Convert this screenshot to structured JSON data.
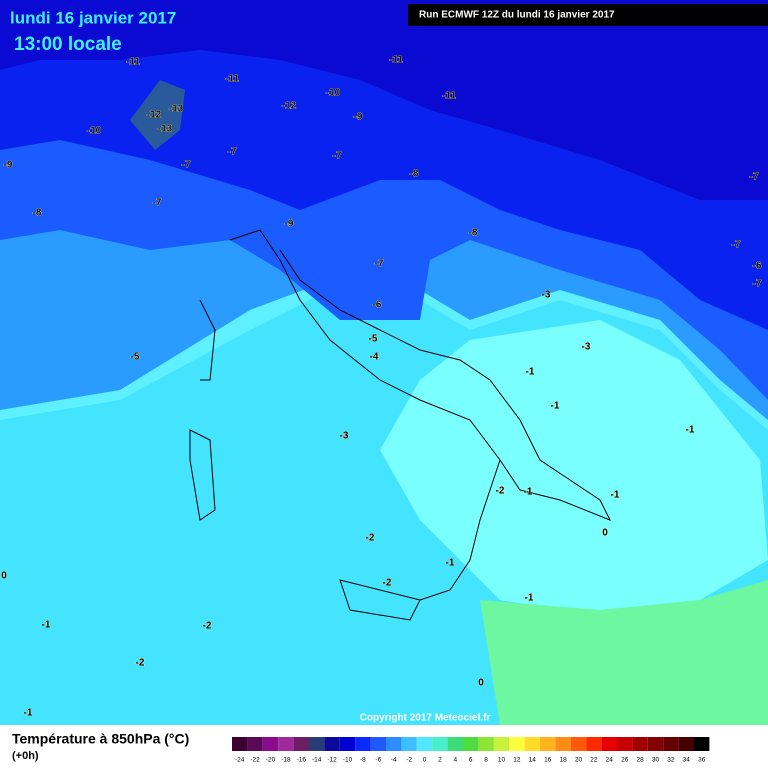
{
  "header": {
    "date": "lundi 16 janvier 2017",
    "time": "13:00 locale",
    "run": "Run ECMWF 12Z du lundi 16 janvier 2017"
  },
  "map": {
    "labels": [
      -11,
      -11,
      -11,
      -11,
      -10,
      -12,
      -13,
      -12,
      -13,
      -10,
      -9,
      -9,
      -7,
      -7,
      -7,
      -8,
      -7,
      -8,
      -9,
      -8,
      -7,
      -7,
      -6,
      -7,
      -7,
      -3,
      -6,
      -5,
      -4,
      -3,
      -5,
      -1,
      -1,
      -1,
      -3,
      -2,
      -1,
      -1,
      0,
      -2,
      -1,
      0,
      -2,
      -1,
      -1,
      -2,
      -2,
      0,
      -1
    ],
    "copyright": "Copyright 2017 Meteociel.fr"
  },
  "footer": {
    "title": "Température à 850hPa (°C)",
    "subtitle": "(+0h)"
  },
  "legend": {
    "ticks": [
      -24,
      -22,
      -20,
      -18,
      -16,
      -14,
      -12,
      -10,
      -8,
      -6,
      -4,
      -2,
      0,
      2,
      4,
      6,
      8,
      10,
      12,
      14,
      16,
      18,
      20,
      22,
      24,
      26,
      28,
      30,
      32,
      34,
      36
    ],
    "colors": [
      "#3c0030",
      "#5a0a55",
      "#8c0a8c",
      "#a0289b",
      "#6e1e64",
      "#283c78",
      "#0a0a9b",
      "#0000d2",
      "#0a28ff",
      "#1e5aff",
      "#2d8cff",
      "#3cbeff",
      "#55e6ff",
      "#46f0c8",
      "#3cdc78",
      "#50dc3c",
      "#8ce632",
      "#c8f03c",
      "#ffff3c",
      "#ffdc28",
      "#ffb41e",
      "#ff8c14",
      "#ff5a0a",
      "#ff2800",
      "#e60000",
      "#c80000",
      "#a00000",
      "#820000",
      "#640000",
      "#460000",
      "#000000"
    ]
  }
}
